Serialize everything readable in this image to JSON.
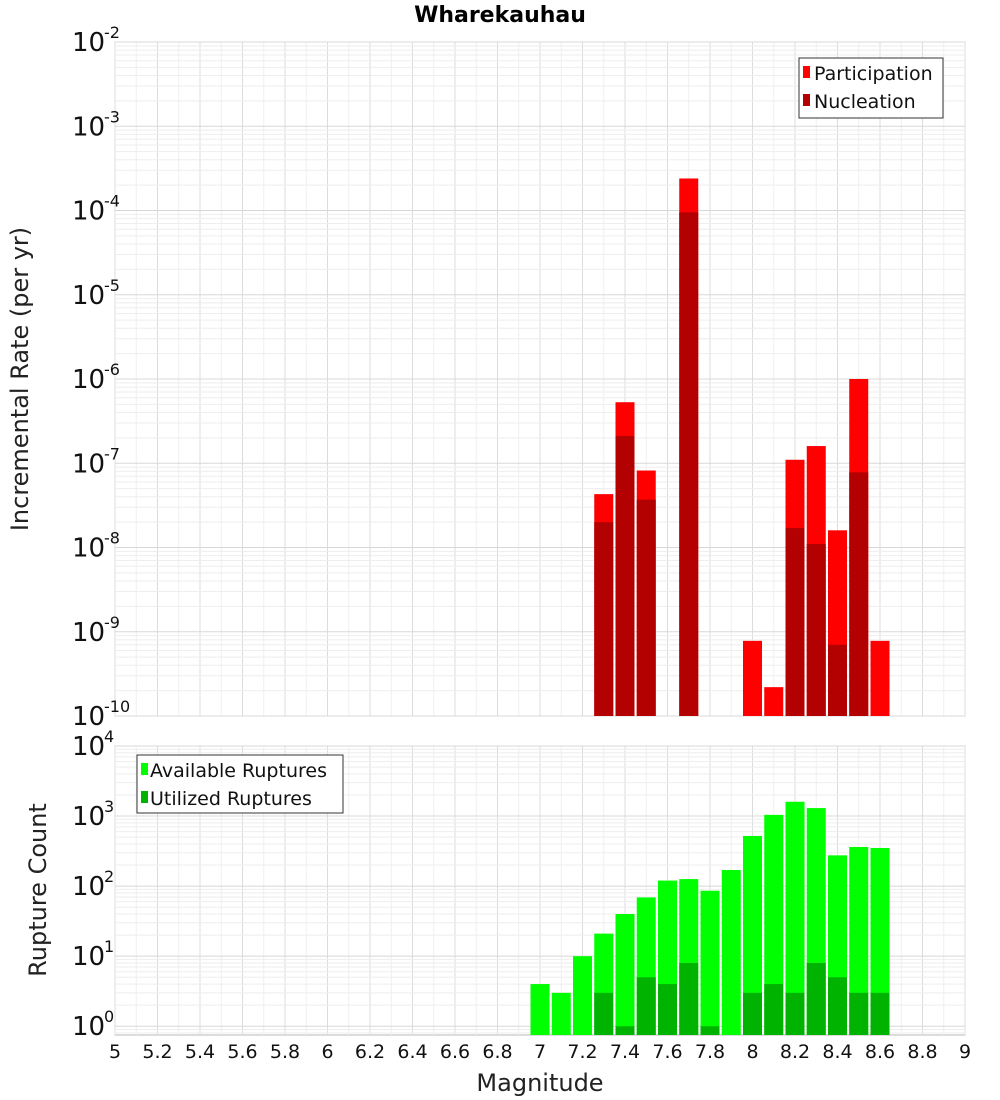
{
  "chart_data": [
    {
      "type": "bar",
      "title": "Wharekauhau",
      "xlabel": "",
      "ylabel": "Incremental Rate (per yr)",
      "yscale": "log",
      "ylim": [
        1e-10,
        0.01
      ],
      "xlim": [
        5,
        9
      ],
      "grid": true,
      "legend_position": "top-right",
      "x": [
        7.3,
        7.4,
        7.5,
        7.6,
        7.7,
        7.8,
        7.9,
        8.0,
        8.1,
        8.2,
        8.3,
        8.4,
        8.5,
        8.6
      ],
      "series": [
        {
          "name": "Participation",
          "color": "#ff0000",
          "values": [
            4.3e-08,
            5.3e-07,
            8.2e-08,
            null,
            0.00024,
            null,
            null,
            7.8e-10,
            2.2e-10,
            1.1e-07,
            1.6e-07,
            1.6e-08,
            1e-06,
            7.8e-10
          ]
        },
        {
          "name": "Nucleation",
          "color": "#b30000",
          "values": [
            2e-08,
            2.1e-07,
            3.7e-08,
            null,
            9.5e-05,
            null,
            null,
            null,
            null,
            1.7e-08,
            1.1e-08,
            7e-10,
            7.8e-08,
            null
          ]
        }
      ]
    },
    {
      "type": "bar",
      "title": "",
      "xlabel": "Magnitude",
      "ylabel": "Rupture Count",
      "yscale": "log",
      "ylim": [
        0.75,
        10000
      ],
      "xlim": [
        5,
        9
      ],
      "grid": true,
      "legend_position": "top-left",
      "x": [
        7.0,
        7.1,
        7.2,
        7.3,
        7.4,
        7.5,
        7.6,
        7.7,
        7.8,
        7.9,
        8.0,
        8.1,
        8.2,
        8.3,
        8.4,
        8.5,
        8.6
      ],
      "series": [
        {
          "name": "Available Ruptures",
          "color": "#00ff00",
          "values": [
            4,
            3,
            10,
            21,
            40,
            69,
            120,
            126,
            86,
            170,
            520,
            1040,
            1600,
            1300,
            275,
            362,
            350
          ]
        },
        {
          "name": "Utilized Ruptures",
          "color": "#00b300",
          "values": [
            null,
            null,
            null,
            3,
            1,
            5,
            4,
            8,
            1,
            null,
            3,
            4,
            3,
            8,
            5,
            3,
            3
          ]
        }
      ]
    }
  ],
  "x_ticks": [
    "5",
    "5.2",
    "5.4",
    "5.6",
    "5.8",
    "6",
    "6.2",
    "6.4",
    "6.6",
    "6.8",
    "7",
    "7.2",
    "7.4",
    "7.6",
    "7.8",
    "8",
    "8.2",
    "8.4",
    "8.6",
    "8.8",
    "9"
  ],
  "top_y_ticks": [
    {
      "base": "10",
      "exp": "-2"
    },
    {
      "base": "10",
      "exp": "-3"
    },
    {
      "base": "10",
      "exp": "-4"
    },
    {
      "base": "10",
      "exp": "-5"
    },
    {
      "base": "10",
      "exp": "-6"
    },
    {
      "base": "10",
      "exp": "-7"
    },
    {
      "base": "10",
      "exp": "-8"
    },
    {
      "base": "10",
      "exp": "-9"
    },
    {
      "base": "10",
      "exp": "-10"
    }
  ],
  "bottom_y_ticks": [
    {
      "base": "10",
      "exp": "4"
    },
    {
      "base": "10",
      "exp": "3"
    },
    {
      "base": "10",
      "exp": "2"
    },
    {
      "base": "10",
      "exp": "1"
    },
    {
      "base": "10",
      "exp": "0"
    }
  ]
}
